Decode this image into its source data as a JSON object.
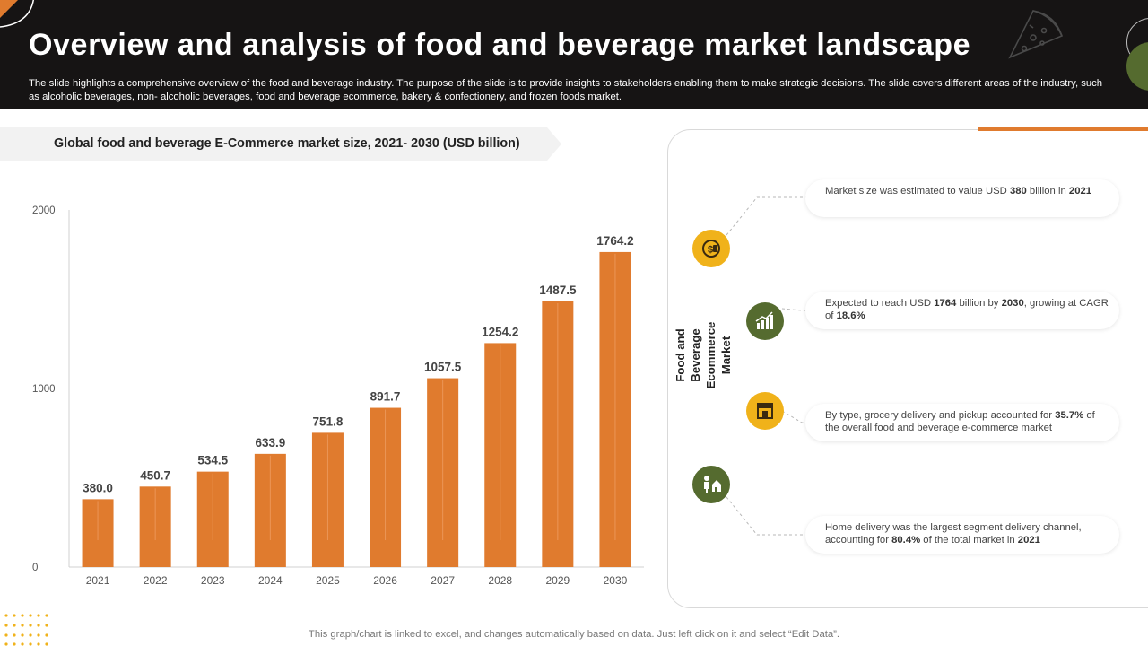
{
  "header": {
    "title": "Overview and analysis of food and beverage market landscape",
    "description": "The slide highlights a comprehensive overview of the food and beverage industry. The purpose of the slide is to provide insights to stakeholders enabling them to make strategic decisions. The slide covers different areas of the industry, such as alcoholic beverages, non- alcoholic beverages, food and beverage ecommerce, bakery & confectionery, and frozen foods market."
  },
  "chart_banner": "Global food and beverage E-Commerce market size, 2021- 2030 (USD billion)",
  "chart_data": {
    "type": "bar",
    "title": "Global food and beverage E-Commerce market size, 2021- 2030 (USD billion)",
    "categories": [
      "2021",
      "2022",
      "2023",
      "2024",
      "2025",
      "2026",
      "2027",
      "2028",
      "2029",
      "2030"
    ],
    "values": [
      380.0,
      450.7,
      534.5,
      633.9,
      751.8,
      891.7,
      1057.5,
      1254.2,
      1487.5,
      1764.2
    ],
    "data_labels": [
      "380.0",
      "450.7",
      "534.5",
      "633.9",
      "751.8",
      "891.7",
      "1057.5",
      "1254.2",
      "1487.5",
      "1764.2"
    ],
    "y_ticks": [
      "0",
      "1000",
      "2000"
    ],
    "ylim": [
      0,
      2000
    ],
    "xlabel": "",
    "ylabel": "",
    "grid": false,
    "bar_color": "#e07b2e"
  },
  "side_panel": {
    "title": "Food and Beverage Ecommerce Market",
    "items": [
      {
        "icon": "money-hand-icon",
        "color": "#f0b21a",
        "pre": "Market size was estimated to value USD ",
        "b1": "380",
        "mid": " billion in ",
        "b2": "2021",
        "post": ""
      },
      {
        "icon": "growth-chart-icon",
        "color": "#556b2f",
        "pre": "Expected to reach USD ",
        "b1": "1764",
        "mid": " billion by ",
        "b2": "2030",
        "post": ", growing at CAGR of ",
        "b3": "18.6%"
      },
      {
        "icon": "grocery-store-icon",
        "color": "#f0b21a",
        "pre": "By type,  grocery delivery and pickup accounted for ",
        "b1": "35.7%",
        "mid": " of the overall food and beverage e-commerce market"
      },
      {
        "icon": "delivery-person-icon",
        "color": "#556b2f",
        "pre": "Home delivery was the largest segment delivery channel, accounting for ",
        "b1": "80.4%",
        "mid": " of the total market in ",
        "b2": "2021"
      }
    ]
  },
  "footnote": "This graph/chart is linked to excel,  and changes automatically based on data. Just left click on it and select “Edit Data”.",
  "colors": {
    "header_bg": "#161414",
    "accent_orange": "#e07b2e",
    "accent_yellow": "#f0b21a",
    "accent_green": "#556b2f"
  }
}
